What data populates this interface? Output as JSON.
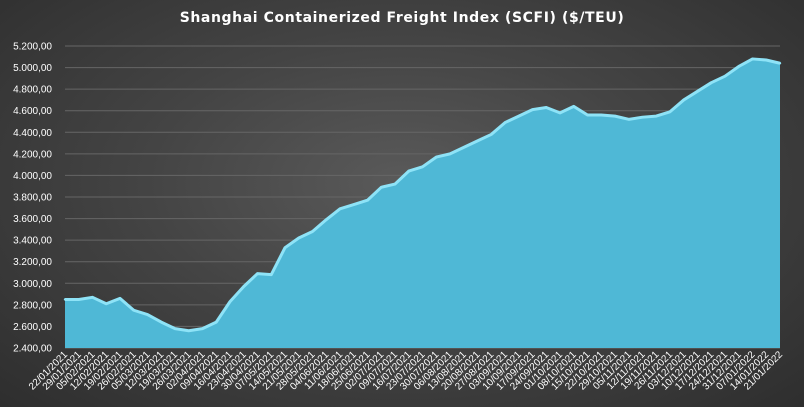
{
  "chart_data": {
    "type": "area",
    "title": "Shanghai Containerized Freight Index  (SCFI)  ($/TEU)",
    "xlabel": "",
    "ylabel": "",
    "ylim": [
      2400,
      5200
    ],
    "ytick_step": 200,
    "ytick_labels": [
      "2.400,00",
      "2.600,00",
      "2.800,00",
      "3.000,00",
      "3.200,00",
      "3.400,00",
      "3.600,00",
      "3.800,00",
      "4.000,00",
      "4.200,00",
      "4.400,00",
      "4.600,00",
      "4.800,00",
      "5.000,00",
      "5.200,00"
    ],
    "grid": true,
    "legend": "none",
    "colors": {
      "fill": "#4fb8d6",
      "line": "#8ee3f7",
      "grid": "#666666",
      "text": "#ffffff"
    },
    "x": [
      "22/01/2021",
      "29/01/2021",
      "05/02/2021",
      "12/02/2021",
      "19/02/2021",
      "26/02/2021",
      "05/03/2021",
      "12/03/2021",
      "19/03/2021",
      "26/03/2021",
      "02/04/2021",
      "09/04/2021",
      "16/04/2021",
      "23/04/2021",
      "30/04/2021",
      "07/05/2021",
      "14/05/2021",
      "21/05/2021",
      "28/05/2021",
      "04/06/2021",
      "11/06/2021",
      "18/06/2021",
      "25/06/2021",
      "02/07/2021",
      "09/07/2021",
      "16/07/2021",
      "23/07/2021",
      "30/07/2021",
      "06/08/2021",
      "13/08/2021",
      "20/08/2021",
      "27/08/2021",
      "03/09/2021",
      "10/09/2021",
      "17/09/2021",
      "24/09/2021",
      "01/10/2021",
      "08/10/2021",
      "15/10/2021",
      "22/10/2021",
      "29/10/2021",
      "05/11/2021",
      "12/11/2021",
      "19/11/2021",
      "26/11/2021",
      "03/12/2021",
      "10/12/2021",
      "17/12/2021",
      "24/12/2021",
      "31/12/2021",
      "07/01/2022",
      "14/01/2022",
      "21/01/2022"
    ],
    "y": [
      2850,
      2850,
      2870,
      2810,
      2860,
      2750,
      2710,
      2640,
      2580,
      2560,
      2580,
      2640,
      2830,
      2970,
      3090,
      3080,
      3330,
      3420,
      3480,
      3590,
      3690,
      3730,
      3770,
      3890,
      3920,
      4040,
      4080,
      4170,
      4200,
      4260,
      4320,
      4380,
      4490,
      4550,
      4610,
      4630,
      4580,
      4640,
      4560,
      4560,
      4550,
      4520,
      4540,
      4550,
      4590,
      4700,
      4780,
      4860,
      4920,
      5010,
      5080,
      5070,
      5040
    ]
  }
}
